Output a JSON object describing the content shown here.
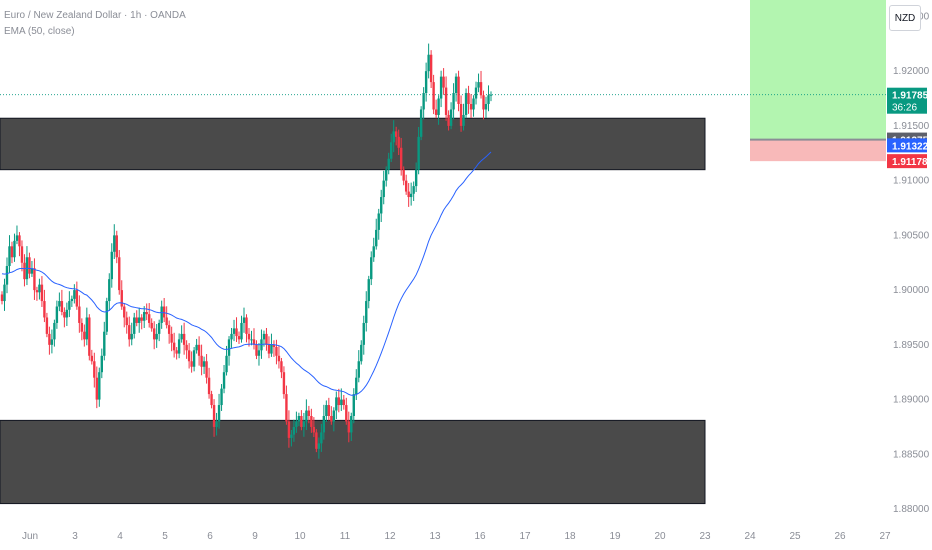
{
  "header": {
    "symbol_line": "Euro / New Zealand Dollar · 1h · OANDA",
    "indicator_line": "EMA (50, close)"
  },
  "currency_button": "NZD",
  "price_axis": {
    "ticks": [
      "1.92500",
      "1.92000",
      "1.91500",
      "1.91000",
      "1.90500",
      "1.90000",
      "1.89500",
      "1.89000",
      "1.88500",
      "1.88000"
    ]
  },
  "price_labels": {
    "last_price": "1.91785",
    "countdown": "36:26",
    "position_entry": "1.91375",
    "blue_level": "1.91322",
    "stop_level": "1.91178"
  },
  "time_axis": {
    "labels": [
      "Jun",
      "3",
      "4",
      "5",
      "6",
      "9",
      "10",
      "11",
      "12",
      "13",
      "16",
      "17",
      "18",
      "19",
      "20",
      "23",
      "24",
      "25",
      "26",
      "27"
    ]
  },
  "zones": [
    {
      "name": "resistance-zone",
      "top_price": 1.9157,
      "bottom_price": 1.911
    },
    {
      "name": "support-zone",
      "top_price": 1.8881,
      "bottom_price": 1.8805
    }
  ],
  "position_tool": {
    "take_profit": 1.927,
    "entry": 1.91375,
    "stop": 1.91178,
    "profit_color": "#b3f5b0",
    "loss_color": "#f8b9b9"
  },
  "colors": {
    "up": "#089981",
    "down": "#f23645",
    "ema": "#2962ff",
    "zone_fill": "#4a4a4a",
    "last_price_bg": "#089981",
    "entry_bg": "#5d606b",
    "blue_bg": "#2962ff",
    "stop_bg": "#f23645"
  },
  "chart_data": {
    "type": "candlestick",
    "symbol": "EURNZD",
    "interval": "1h",
    "ylim": [
      1.879,
      1.9265
    ],
    "x_labels": [
      "Jun",
      "3",
      "4",
      "5",
      "6",
      "9",
      "10",
      "11",
      "12",
      "13",
      "16",
      "17",
      "18",
      "19",
      "20",
      "23",
      "24",
      "25",
      "26",
      "27"
    ],
    "last_price": 1.91785,
    "series": [
      {
        "name": "close",
        "description": "hourly closes",
        "values": [
          1.899,
          1.9005,
          1.9022,
          1.904,
          1.903,
          1.9045,
          1.905,
          1.904,
          1.9025,
          1.901,
          1.903,
          1.9015,
          1.902,
          1.9,
          1.8998,
          1.9005,
          1.899,
          1.8975,
          1.896,
          1.895,
          1.8955,
          1.897,
          1.8985,
          1.899,
          1.898,
          1.8975,
          1.8982,
          1.899,
          1.8992,
          1.9,
          1.8985,
          1.897,
          1.8962,
          1.8955,
          1.8975,
          1.894,
          1.8935,
          1.892,
          1.89,
          1.8925,
          1.894,
          1.8962,
          1.899,
          1.901,
          1.9035,
          1.905,
          1.903,
          1.9,
          1.8985,
          1.8975,
          1.8968,
          1.8955,
          1.896,
          1.8975,
          1.897,
          1.8975,
          1.8972,
          1.898,
          1.8978,
          1.897,
          1.8965,
          1.8955,
          1.896,
          1.897,
          1.8985,
          1.8975,
          1.8968,
          1.896,
          1.8952,
          1.8945,
          1.8942,
          1.8955,
          1.896,
          1.895,
          1.8945,
          1.8935,
          1.893,
          1.8945,
          1.895,
          1.894,
          1.893,
          1.8935,
          1.892,
          1.8905,
          1.8895,
          1.8875,
          1.888,
          1.8895,
          1.891,
          1.8925,
          1.894,
          1.8955,
          1.896,
          1.8965,
          1.8958,
          1.8955,
          1.897,
          1.8975,
          1.896,
          1.8955,
          1.8955,
          1.895,
          1.894,
          1.8945,
          1.8955,
          1.896,
          1.895,
          1.8942,
          1.895,
          1.8948,
          1.894,
          1.8935,
          1.8925,
          1.8905,
          1.888,
          1.8865,
          1.8868,
          1.8875,
          1.888,
          1.8885,
          1.8875,
          1.888,
          1.889,
          1.8885,
          1.8875,
          1.887,
          1.8855,
          1.886,
          1.887,
          1.8885,
          1.8895,
          1.8885,
          1.888,
          1.889,
          1.8902,
          1.8895,
          1.89,
          1.8895,
          1.888,
          1.887,
          1.8885,
          1.8905,
          1.892,
          1.8935,
          1.895,
          1.897,
          1.899,
          1.901,
          1.903,
          1.904,
          1.9055,
          1.907,
          1.9085,
          1.91,
          1.911,
          1.912,
          1.9135,
          1.9145,
          1.914,
          1.913,
          1.911,
          1.91,
          1.909,
          1.9085,
          1.9088,
          1.9095,
          1.911,
          1.914,
          1.9165,
          1.918,
          1.92,
          1.9215,
          1.919,
          1.9165,
          1.916,
          1.9175,
          1.9195,
          1.9185,
          1.916,
          1.915,
          1.9165,
          1.918,
          1.9195,
          1.917,
          1.915,
          1.916,
          1.918,
          1.917,
          1.9165,
          1.9175,
          1.9185,
          1.919,
          1.9178,
          1.9165,
          1.917,
          1.9178,
          1.91785
        ]
      }
    ]
  }
}
